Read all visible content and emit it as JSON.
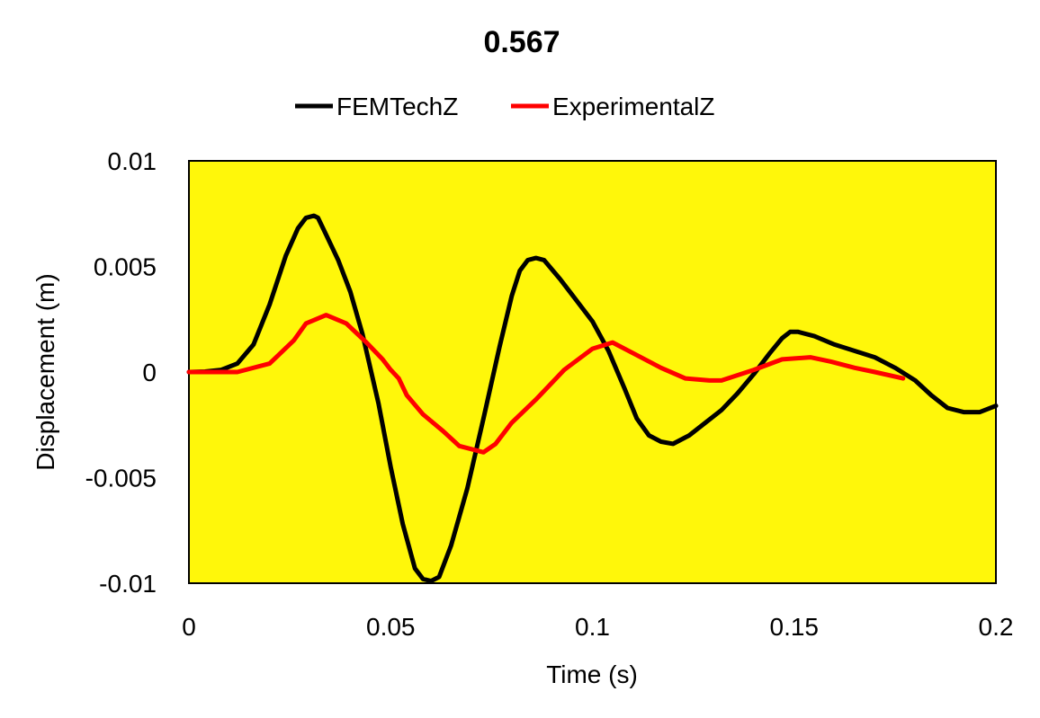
{
  "chart_data": {
    "type": "line",
    "title": "0.567",
    "xlabel": "Time (s)",
    "ylabel": "Displacement (m)",
    "xlim": [
      0,
      0.2
    ],
    "ylim": [
      -0.01,
      0.01
    ],
    "x_ticks": [
      0,
      0.05,
      0.1,
      0.15,
      0.2
    ],
    "x_tick_labels": [
      "0",
      "0.05",
      "0.1",
      "0.15",
      "0.2"
    ],
    "y_ticks": [
      0.01,
      0.005,
      0,
      -0.005,
      -0.01
    ],
    "y_tick_labels": [
      "0.01",
      "0.005",
      "0",
      "-0.005",
      "-0.01"
    ],
    "grid": false,
    "plot_background": "#FFF70A",
    "legend_position": "top-center",
    "series": [
      {
        "name": "FEMTechZ",
        "color": "#000000",
        "x": [
          0,
          0.004,
          0.008,
          0.012,
          0.016,
          0.02,
          0.024,
          0.027,
          0.029,
          0.031,
          0.032,
          0.034,
          0.037,
          0.04,
          0.043,
          0.047,
          0.05,
          0.053,
          0.056,
          0.058,
          0.06,
          0.062,
          0.065,
          0.069,
          0.073,
          0.077,
          0.08,
          0.082,
          0.084,
          0.086,
          0.088,
          0.092,
          0.096,
          0.1,
          0.104,
          0.108,
          0.111,
          0.114,
          0.117,
          0.12,
          0.124,
          0.128,
          0.132,
          0.136,
          0.14,
          0.144,
          0.147,
          0.149,
          0.151,
          0.155,
          0.16,
          0.165,
          0.17,
          0.175,
          0.18,
          0.184,
          0.188,
          0.192,
          0.196,
          0.2
        ],
        "y": [
          0,
          2e-05,
          0.0001,
          0.0004,
          0.0013,
          0.0032,
          0.0055,
          0.0068,
          0.0073,
          0.0074,
          0.0073,
          0.0065,
          0.0053,
          0.0038,
          0.0018,
          -0.0015,
          -0.0045,
          -0.0072,
          -0.0093,
          -0.0098,
          -0.0099,
          -0.0097,
          -0.0082,
          -0.0055,
          -0.0022,
          0.0012,
          0.0036,
          0.0048,
          0.0053,
          0.0054,
          0.0053,
          0.0044,
          0.0034,
          0.0024,
          0.001,
          -0.0008,
          -0.0022,
          -0.003,
          -0.0033,
          -0.0034,
          -0.003,
          -0.0024,
          -0.0018,
          -0.001,
          -0.0001,
          0.0009,
          0.0016,
          0.0019,
          0.0019,
          0.0017,
          0.0013,
          0.001,
          0.0007,
          0.0002,
          -0.0004,
          -0.0011,
          -0.0017,
          -0.0019,
          -0.0019,
          -0.0016
        ]
      },
      {
        "name": "ExperimentalZ",
        "color": "#FF0000",
        "x": [
          0,
          0.006,
          0.012,
          0.02,
          0.026,
          0.029,
          0.034,
          0.039,
          0.044,
          0.048,
          0.05,
          0.052,
          0.054,
          0.058,
          0.063,
          0.067,
          0.071,
          0.073,
          0.076,
          0.08,
          0.086,
          0.093,
          0.1,
          0.105,
          0.111,
          0.117,
          0.123,
          0.129,
          0.132,
          0.14,
          0.147,
          0.154,
          0.159,
          0.165,
          0.17,
          0.177
        ],
        "y": [
          0,
          0,
          0,
          0.0004,
          0.0015,
          0.0023,
          0.0027,
          0.0023,
          0.0014,
          0.0006,
          0.0001,
          -0.0003,
          -0.0011,
          -0.002,
          -0.0028,
          -0.0035,
          -0.0037,
          -0.0038,
          -0.0034,
          -0.0024,
          -0.0013,
          0.0001,
          0.0011,
          0.0014,
          0.0008,
          0.0002,
          -0.0003,
          -0.0004,
          -0.0004,
          0.0001,
          0.0006,
          0.0007,
          0.0005,
          0.0002,
          0,
          -0.0003
        ]
      }
    ]
  }
}
